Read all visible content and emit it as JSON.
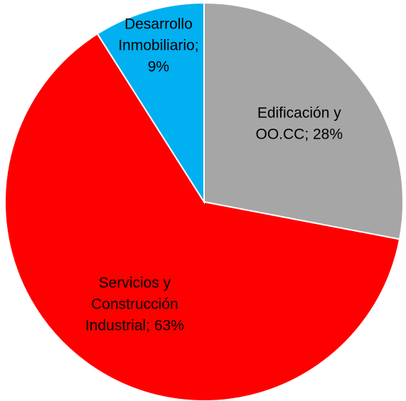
{
  "chart_data": {
    "type": "pie",
    "categories": [
      "Edificación y OO.CC",
      "Servicios y Construcción Industrial",
      "Desarrollo Inmobiliario"
    ],
    "values": [
      28,
      63,
      9
    ],
    "value_labels": [
      "Edificación y\nOO.CC; 28%",
      "Servicios y\nConstrucción\nIndustrial; 63%",
      "Desarrollo\nInmobiliario;\n9%"
    ],
    "colors": [
      "#a6a6a6",
      "#ff0000",
      "#00b0f0"
    ]
  }
}
